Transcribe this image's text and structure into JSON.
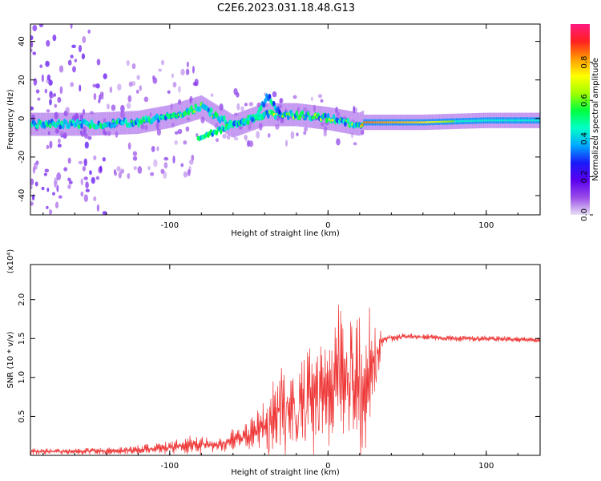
{
  "title": "C2E6.2023.031.18.48.G13",
  "chart_data": [
    {
      "type": "heatmap",
      "xlabel": "Height of straight line (km)",
      "ylabel": "Frequency (Hz)",
      "xlim": [
        -188,
        134
      ],
      "ylim": [
        -50,
        49
      ],
      "xticks": [
        -100,
        0,
        100
      ],
      "yticks": [
        -40,
        -20,
        0,
        20,
        40
      ],
      "xtick_labels": [
        "-100",
        "0",
        "100"
      ],
      "ytick_labels": [
        "-40",
        "-20",
        "0",
        "20",
        "40"
      ],
      "colorbar": {
        "label": "Normalized spectral amplitude",
        "range": [
          0,
          1
        ],
        "ticks": [
          0.0,
          0.2,
          0.4,
          0.6,
          0.8
        ],
        "tick_labels": [
          "0.0",
          "0.2",
          "0.4",
          "0.6",
          "0.8"
        ],
        "colors": [
          "#e8e0f4",
          "#9a4de8",
          "#5a00f0",
          "#1a1af8",
          "#00a8ff",
          "#00ffc8",
          "#00ff40",
          "#a0ff00",
          "#ffff00",
          "#ff9a00",
          "#ff2020",
          "#ff1a80"
        ]
      },
      "ridge": [
        {
          "x": -188,
          "f": -3,
          "amp": 0.3
        },
        {
          "x": -150,
          "f": -3,
          "amp": 0.35
        },
        {
          "x": -120,
          "f": -2,
          "amp": 0.4
        },
        {
          "x": -100,
          "f": 1,
          "amp": 0.45
        },
        {
          "x": -80,
          "f": 6,
          "amp": 0.5
        },
        {
          "x": -80,
          "f": -10,
          "amp": 0.45
        },
        {
          "x": -60,
          "f": -4,
          "amp": 0.45
        },
        {
          "x": -40,
          "f": 2,
          "amp": 0.55
        },
        {
          "x": -35,
          "f": 12,
          "amp": 0.4
        },
        {
          "x": -20,
          "f": 2,
          "amp": 0.55
        },
        {
          "x": 0,
          "f": 0,
          "amp": 0.55
        },
        {
          "x": 20,
          "f": -3,
          "amp": 0.5
        },
        {
          "x": 22,
          "f": -2,
          "amp": 0.85
        },
        {
          "x": 60,
          "f": -2,
          "amp": 0.75
        },
        {
          "x": 100,
          "f": -1,
          "amp": 0.45
        },
        {
          "x": 134,
          "f": -1,
          "amp": 0.4
        }
      ]
    },
    {
      "type": "line",
      "xlabel": "Height of straight line (km)",
      "ylabel": "SNR (10 * v/v)",
      "yscale_label": "(x10⁴)",
      "xlim": [
        -188,
        134
      ],
      "ylim": [
        0,
        2.45
      ],
      "xticks": [
        -100,
        0,
        100
      ],
      "yticks": [
        0.5,
        1.0,
        1.5,
        2.0
      ],
      "xtick_labels": [
        "-100",
        "0",
        "100"
      ],
      "ytick_labels": [
        "0.5",
        "1.0",
        "1.5",
        "2.0"
      ],
      "color": "#ee3333",
      "series": [
        {
          "x": [
            -188,
            -160,
            -130,
            -100,
            -90,
            -80,
            -70,
            -60,
            -50,
            -40,
            -30,
            -20,
            -10,
            0,
            10,
            20,
            25,
            30,
            35,
            50,
            80,
            100,
            134
          ],
          "base": [
            0.05,
            0.05,
            0.06,
            0.1,
            0.13,
            0.15,
            0.12,
            0.2,
            0.25,
            0.38,
            0.6,
            0.7,
            0.8,
            0.85,
            0.9,
            0.95,
            1.05,
            1.25,
            1.5,
            1.53,
            1.5,
            1.5,
            1.48
          ],
          "spread": [
            0.04,
            0.04,
            0.05,
            0.08,
            0.12,
            0.15,
            0.08,
            0.15,
            0.2,
            0.35,
            0.5,
            0.55,
            0.6,
            0.75,
            0.85,
            0.9,
            0.95,
            0.45,
            0.06,
            0.04,
            0.04,
            0.04,
            0.04
          ]
        }
      ]
    }
  ]
}
